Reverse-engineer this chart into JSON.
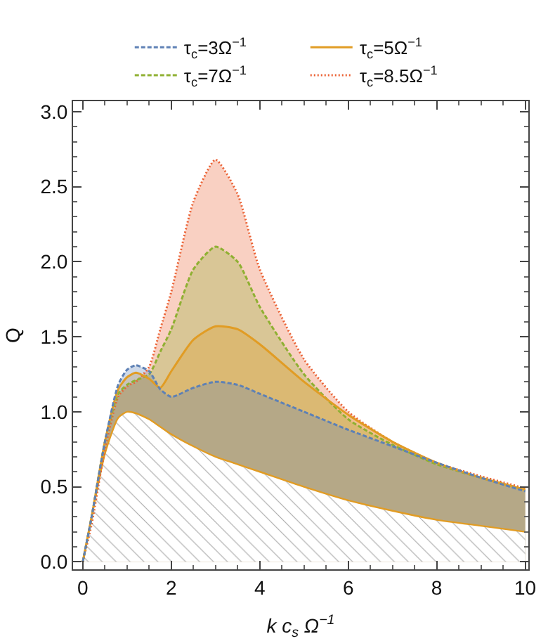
{
  "chart_data": {
    "type": "area",
    "xlabel": "k c$_{s}$ Ω$^{−1}$",
    "ylabel": "Q",
    "x": [
      0,
      0.2,
      0.5,
      0.8,
      1,
      1.2,
      1.5,
      1.75,
      2,
      2.5,
      3,
      3.5,
      4,
      5,
      6,
      7,
      8,
      9,
      10
    ],
    "xlim": [
      -0.22,
      10.07
    ],
    "xticks": [
      0,
      2,
      4,
      6,
      8,
      10
    ],
    "ylim": [
      -0.05,
      3.07
    ],
    "yticks": [
      {
        "value": 0,
        "label": "0.0"
      },
      0.5,
      {
        "value": 1,
        "label": "1.0"
      },
      1.5,
      {
        "value": 2,
        "label": "2.0"
      },
      2.5,
      {
        "value": 3,
        "label": "3.0"
      }
    ],
    "grid": false,
    "legend": "top",
    "series": [
      {
        "name": "τ$_{c}$=8.5Ω$^{−1}$",
        "color": "#eb6235",
        "line_style": "dotted",
        "values": [
          0,
          0.25,
          0.75,
          1.1,
          1.17,
          1.2,
          1.3,
          1.55,
          1.8,
          2.4,
          2.68,
          2.45,
          1.95,
          1.35,
          1.0,
          0.8,
          0.66,
          0.57,
          0.49
        ]
      },
      {
        "name": "τ$_{c}$=7Ω$^{−1}$",
        "color": "#8fb032",
        "line_style": "dashed",
        "values": [
          0,
          0.3,
          0.8,
          1.12,
          1.18,
          1.21,
          1.25,
          1.4,
          1.55,
          1.95,
          2.1,
          2.0,
          1.7,
          1.25,
          0.95,
          0.78,
          0.65,
          0.56,
          0.48
        ]
      },
      {
        "name": "τ$_{c}$=5Ω$^{−1}$",
        "color": "#e19c24",
        "line_style": "solid",
        "values": [
          0,
          0.3,
          0.8,
          1.15,
          1.23,
          1.26,
          1.22,
          1.16,
          1.27,
          1.48,
          1.57,
          1.55,
          1.45,
          1.2,
          0.98,
          0.8,
          0.66,
          0.56,
          0.48
        ]
      },
      {
        "name": "τ$_{c}$=3Ω$^{−1}$",
        "color": "#5e81b5",
        "line_style": "dashed",
        "values": [
          0,
          0.3,
          0.8,
          1.18,
          1.28,
          1.31,
          1.27,
          1.15,
          1.1,
          1.16,
          1.2,
          1.18,
          1.12,
          1.0,
          0.88,
          0.77,
          0.66,
          0.56,
          0.47
        ]
      },
      {
        "type": "area",
        "color": "#a8a8a8",
        "values": [
          0,
          0.3,
          0.72,
          0.96,
          1.0,
          0.99,
          0.95,
          0.9,
          0.85,
          0.77,
          0.7,
          0.65,
          0.6,
          0.5,
          0.41,
          0.34,
          0.28,
          0.24,
          0.2
        ]
      }
    ]
  }
}
